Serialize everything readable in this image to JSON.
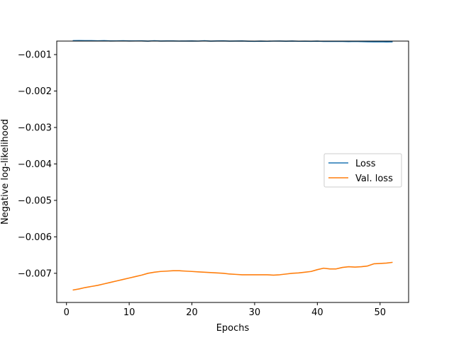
{
  "chart_data": {
    "type": "line",
    "title": "",
    "xlabel": "Epochs",
    "ylabel": "Negative log-likelihood",
    "xlim": [
      -1.55,
      54.55
    ],
    "ylim": [
      -0.0078,
      -0.00063
    ],
    "xticks": [
      0,
      10,
      20,
      30,
      40,
      50
    ],
    "xtick_labels": [
      "0",
      "10",
      "20",
      "30",
      "40",
      "50"
    ],
    "yticks": [
      -0.001,
      -0.002,
      -0.003,
      -0.004,
      -0.005,
      -0.006,
      -0.007
    ],
    "ytick_labels": [
      "−0.001",
      "−0.002",
      "−0.003",
      "−0.004",
      "−0.005",
      "−0.006",
      "−0.007"
    ],
    "grid": false,
    "legend_position": "center right",
    "x": [
      1,
      2,
      3,
      4,
      5,
      6,
      7,
      8,
      9,
      10,
      11,
      12,
      13,
      14,
      15,
      16,
      17,
      18,
      19,
      20,
      21,
      22,
      23,
      24,
      25,
      26,
      27,
      28,
      29,
      30,
      31,
      32,
      33,
      34,
      35,
      36,
      37,
      38,
      39,
      40,
      41,
      42,
      43,
      44,
      45,
      46,
      47,
      48,
      49,
      50,
      51,
      52
    ],
    "series": [
      {
        "name": "Loss",
        "color": "#1f77b4",
        "values": [
          -0.000618,
          -0.000617,
          -0.000618,
          -0.000619,
          -0.000624,
          -0.000618,
          -0.000626,
          -0.000625,
          -0.000622,
          -0.000626,
          -0.000625,
          -0.000624,
          -0.000631,
          -0.00062,
          -0.000628,
          -0.000626,
          -0.000627,
          -0.00063,
          -0.000628,
          -0.000627,
          -0.00063,
          -0.000622,
          -0.000631,
          -0.000627,
          -0.000624,
          -0.000631,
          -0.000628,
          -0.000627,
          -0.000633,
          -0.000637,
          -0.000631,
          -0.000635,
          -0.00063,
          -0.000628,
          -0.000634,
          -0.000629,
          -0.000635,
          -0.000633,
          -0.000637,
          -0.000632,
          -0.00064,
          -0.000637,
          -0.000639,
          -0.00064,
          -0.000643,
          -0.00064,
          -0.000643,
          -0.000648,
          -0.000651,
          -0.000649,
          -0.000654,
          -0.000652
        ]
      },
      {
        "name": "Val. loss",
        "color": "#ff7f0e",
        "values": [
          -0.00746,
          -0.00743,
          -0.00739,
          -0.00736,
          -0.00733,
          -0.00729,
          -0.00725,
          -0.00721,
          -0.00717,
          -0.00713,
          -0.00709,
          -0.00705,
          -0.007,
          -0.00697,
          -0.00695,
          -0.00694,
          -0.00693,
          -0.00693,
          -0.00694,
          -0.00695,
          -0.00696,
          -0.00697,
          -0.00698,
          -0.00699,
          -0.007,
          -0.00702,
          -0.00703,
          -0.00704,
          -0.00704,
          -0.00704,
          -0.00704,
          -0.00704,
          -0.00705,
          -0.00704,
          -0.00702,
          -0.007,
          -0.00699,
          -0.00697,
          -0.00695,
          -0.0069,
          -0.00686,
          -0.00688,
          -0.00688,
          -0.00684,
          -0.00682,
          -0.00683,
          -0.00682,
          -0.0068,
          -0.00674,
          -0.00673,
          -0.00672,
          -0.0067
        ]
      }
    ]
  }
}
